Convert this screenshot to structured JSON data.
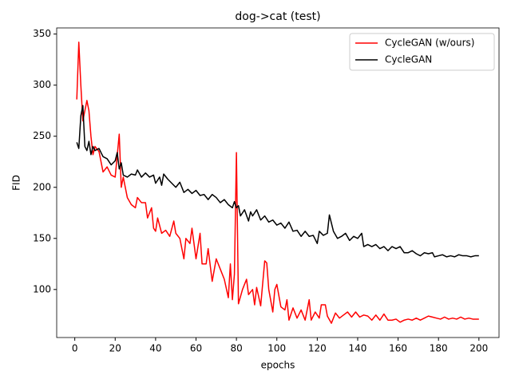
{
  "chart_data": {
    "type": "line",
    "title": "dog->cat (test)",
    "xlabel": "epochs",
    "ylabel": "FID",
    "xlim": [
      -8.95,
      209.95
    ],
    "ylim": [
      53,
      356
    ],
    "xticks": [
      0,
      20,
      40,
      60,
      80,
      100,
      120,
      140,
      160,
      180,
      200
    ],
    "yticks": [
      100,
      150,
      200,
      250,
      300,
      350
    ],
    "grid": false,
    "legend": "upper right",
    "series": [
      {
        "name": "CycleGAN (w/ours)",
        "color": "#ff0000",
        "x": [
          1,
          2,
          3,
          4,
          6,
          7,
          8,
          9,
          10,
          12,
          14,
          16,
          18,
          20,
          22,
          23,
          24,
          26,
          28,
          30,
          31,
          33,
          35,
          36,
          38,
          39,
          40,
          41,
          43,
          45,
          47,
          49,
          50,
          52,
          54,
          55,
          57,
          58,
          60,
          62,
          63,
          65,
          66,
          68,
          70,
          72,
          74,
          76,
          77,
          78,
          79,
          80,
          81,
          83,
          85,
          86,
          88,
          89,
          90,
          92,
          94,
          95,
          96,
          98,
          99,
          100,
          102,
          104,
          105,
          106,
          108,
          110,
          112,
          114,
          116,
          117,
          119,
          121,
          122,
          124,
          125,
          127,
          129,
          131,
          133,
          135,
          137,
          139,
          141,
          143,
          145,
          147,
          149,
          151,
          153,
          155,
          157,
          159,
          161,
          163,
          165,
          167,
          169,
          171,
          173,
          175,
          177,
          179,
          181,
          183,
          185,
          187,
          189,
          191,
          193,
          195,
          197,
          200
        ],
        "values": [
          286,
          342,
          300,
          265,
          285,
          275,
          250,
          232,
          240,
          235,
          215,
          220,
          212,
          210,
          252,
          200,
          210,
          190,
          183,
          180,
          190,
          185,
          185,
          170,
          180,
          160,
          157,
          170,
          155,
          158,
          152,
          167,
          155,
          150,
          130,
          150,
          145,
          160,
          130,
          155,
          125,
          125,
          140,
          108,
          130,
          120,
          110,
          92,
          125,
          90,
          115,
          234,
          86,
          100,
          110,
          95,
          100,
          85,
          102,
          84,
          128,
          126,
          100,
          78,
          100,
          105,
          83,
          80,
          90,
          70,
          82,
          72,
          80,
          70,
          90,
          70,
          78,
          72,
          85,
          85,
          74,
          67,
          77,
          72,
          75,
          78,
          73,
          78,
          73,
          75,
          74,
          70,
          75,
          70,
          76,
          70,
          70,
          71,
          68,
          70,
          71,
          70,
          72,
          70,
          72,
          74,
          73,
          72,
          71,
          73,
          71,
          72,
          71,
          73,
          71,
          72,
          71,
          71
        ]
      },
      {
        "name": "CycleGAN",
        "color": "#000000",
        "x": [
          1,
          2,
          3,
          4,
          5,
          6,
          7,
          8,
          9,
          10,
          12,
          14,
          16,
          18,
          20,
          21,
          22,
          23,
          24,
          26,
          28,
          30,
          31,
          33,
          35,
          37,
          39,
          40,
          42,
          43,
          44,
          46,
          48,
          50,
          52,
          54,
          56,
          58,
          60,
          62,
          64,
          66,
          68,
          70,
          72,
          74,
          76,
          78,
          79,
          80,
          81,
          82,
          84,
          86,
          87,
          88,
          90,
          92,
          94,
          96,
          98,
          100,
          102,
          104,
          106,
          108,
          110,
          112,
          114,
          116,
          118,
          120,
          121,
          123,
          125,
          126,
          128,
          130,
          132,
          134,
          136,
          138,
          140,
          142,
          143,
          145,
          147,
          149,
          151,
          153,
          155,
          157,
          159,
          161,
          163,
          165,
          167,
          169,
          171,
          173,
          175,
          177,
          178,
          180,
          182,
          184,
          186,
          188,
          190,
          192,
          194,
          196,
          198,
          200
        ],
        "values": [
          244,
          238,
          270,
          280,
          240,
          236,
          245,
          232,
          240,
          236,
          238,
          230,
          228,
          222,
          226,
          234,
          218,
          224,
          212,
          210,
          213,
          212,
          217,
          210,
          214,
          210,
          212,
          204,
          210,
          202,
          213,
          208,
          204,
          200,
          205,
          195,
          198,
          194,
          197,
          192,
          193,
          188,
          193,
          190,
          185,
          188,
          183,
          180,
          186,
          180,
          182,
          172,
          178,
          167,
          176,
          172,
          178,
          168,
          172,
          166,
          168,
          163,
          165,
          160,
          166,
          157,
          158,
          152,
          157,
          152,
          153,
          145,
          157,
          153,
          155,
          173,
          157,
          150,
          152,
          155,
          148,
          152,
          150,
          155,
          142,
          144,
          142,
          144,
          140,
          142,
          138,
          142,
          140,
          142,
          136,
          136,
          138,
          135,
          133,
          136,
          135,
          136,
          132,
          133,
          134,
          132,
          133,
          132,
          134,
          133,
          133,
          132,
          133,
          133
        ]
      }
    ]
  }
}
